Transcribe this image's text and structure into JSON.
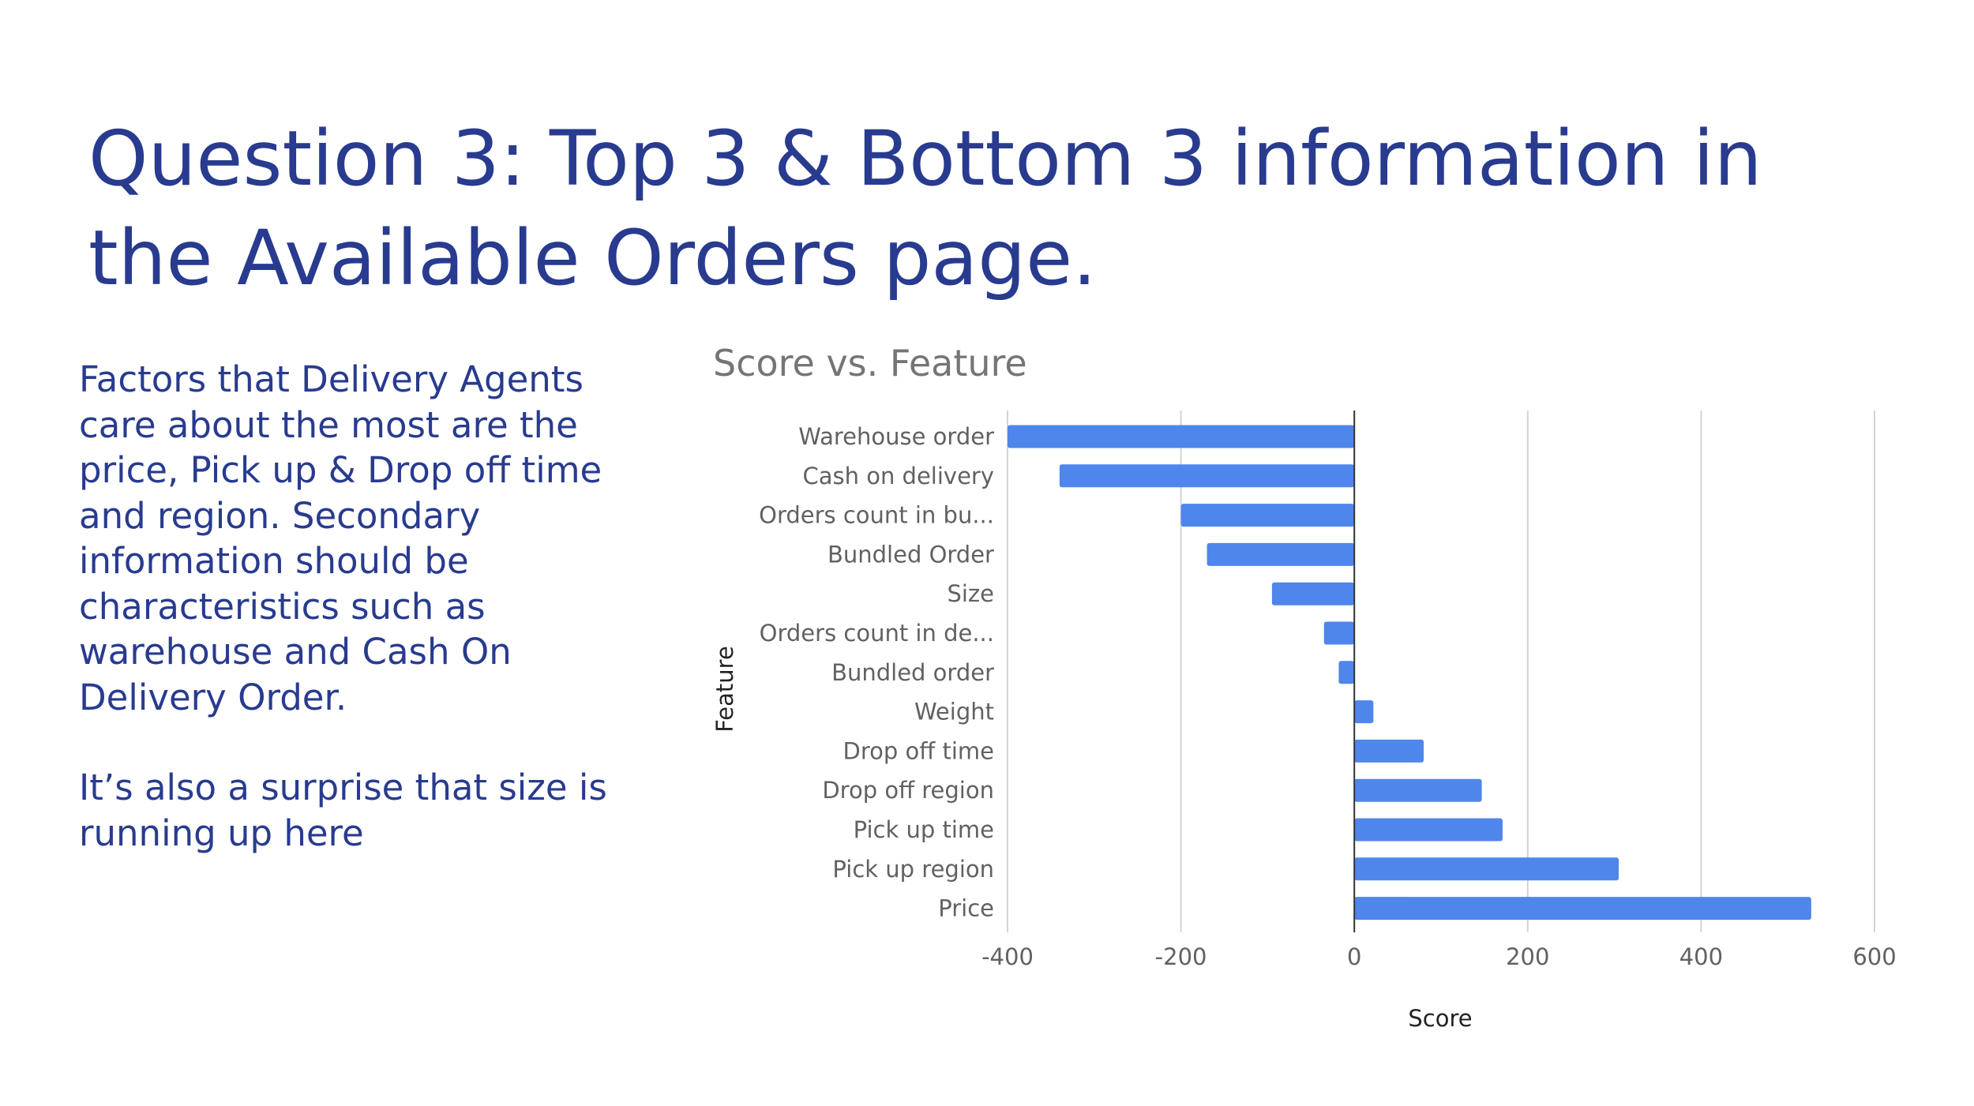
{
  "slide": {
    "title": "Question 3:  Top 3 & Bottom 3 information in the Available Orders page.",
    "body_paragraphs": [
      "Factors that Delivery Agents care about the most are the price, Pick up & Drop off time and region. Secondary information should be characteristics such as warehouse and Cash On Delivery Order.",
      "It’s also a surprise that size is running up here"
    ]
  },
  "colors": {
    "title_text": "#283b8f",
    "bar": "#4f86eb",
    "grid": "#d4d4d4",
    "zero_line": "#333333"
  },
  "chart_data": {
    "type": "bar",
    "orientation": "horizontal",
    "title": "Score vs. Feature",
    "xlabel": "Score",
    "ylabel": "Feature",
    "categories": [
      "Warehouse order",
      "Cash on delivery",
      "Orders count in bu...",
      "Bundled Order",
      "Size",
      "Orders count in de...",
      "Bundled order",
      "Weight",
      "Drop off time",
      "Drop off region",
      "Pick up time",
      "Pick up region",
      "Price"
    ],
    "series": [
      {
        "values": [
          -400,
          -340,
          -200,
          -170,
          -95,
          -35,
          -18,
          22,
          80,
          147,
          171,
          305,
          527
        ]
      }
    ],
    "xlim": [
      -400,
      600
    ],
    "xticks": [
      -400,
      -200,
      0,
      200,
      400,
      600
    ],
    "grid": true,
    "legend": "none"
  }
}
